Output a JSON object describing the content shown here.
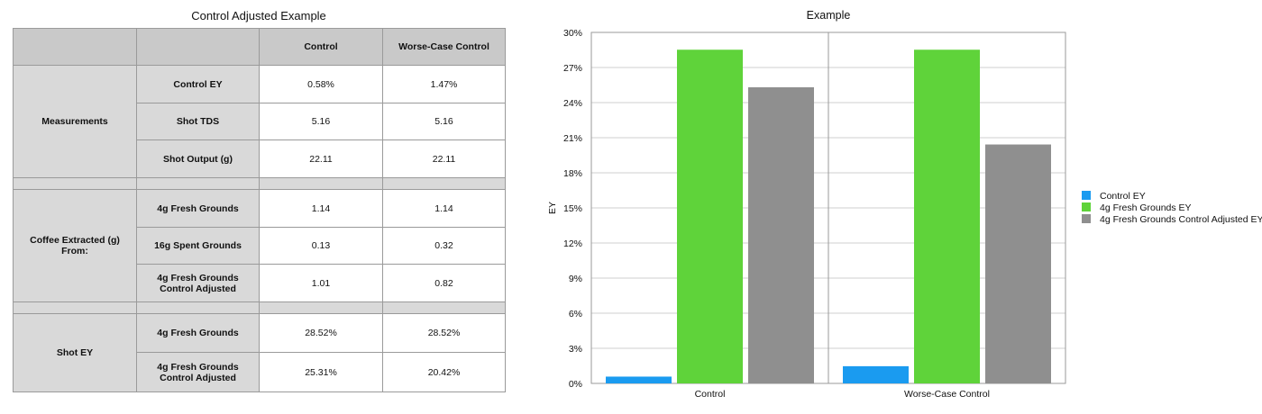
{
  "table": {
    "title": "Control Adjusted Example",
    "columns": [
      "",
      "",
      "Control",
      "Worse-Case Control"
    ],
    "groups": [
      {
        "label": "Measurements",
        "rows": [
          {
            "label": "Control EY",
            "control": "0.58%",
            "worse": "1.47%"
          },
          {
            "label": "Shot TDS",
            "control": "5.16",
            "worse": "5.16"
          },
          {
            "label": "Shot Output (g)",
            "control": "22.11",
            "worse": "22.11"
          }
        ]
      },
      {
        "label": "Coffee Extracted (g) From:",
        "rows": [
          {
            "label": "4g Fresh Grounds",
            "control": "1.14",
            "worse": "1.14"
          },
          {
            "label": "16g Spent Grounds",
            "control": "0.13",
            "worse": "0.32"
          },
          {
            "label": "4g Fresh Grounds Control Adjusted",
            "control": "1.01",
            "worse": "0.82"
          }
        ]
      },
      {
        "label": "Shot EY",
        "rows": [
          {
            "label": "4g Fresh Grounds",
            "control": "28.52%",
            "worse": "28.52%"
          },
          {
            "label": "4g Fresh Grounds Control Adjusted",
            "control": "25.31%",
            "worse": "20.42%"
          }
        ]
      }
    ]
  },
  "chart_data": {
    "type": "bar",
    "title": "Example",
    "xlabel": "",
    "ylabel": "EY",
    "ylim": [
      0,
      30
    ],
    "yticks": [
      0,
      3,
      6,
      9,
      12,
      15,
      18,
      21,
      24,
      27,
      30
    ],
    "ytick_labels": [
      "0%",
      "3%",
      "6%",
      "9%",
      "12%",
      "15%",
      "18%",
      "21%",
      "24%",
      "27%",
      "30%"
    ],
    "categories": [
      "Control",
      "Worse-Case Control"
    ],
    "series": [
      {
        "name": "Control EY",
        "color": "#1a9bf0",
        "values": [
          0.58,
          1.47
        ]
      },
      {
        "name": "4g Fresh Grounds EY",
        "color": "#5fd33a",
        "values": [
          28.52,
          28.52
        ]
      },
      {
        "name": "4g Fresh Grounds Control Adjusted EY",
        "color": "#8f8f8f",
        "values": [
          25.31,
          20.42
        ]
      }
    ],
    "legend_position": "right",
    "grid": true
  }
}
